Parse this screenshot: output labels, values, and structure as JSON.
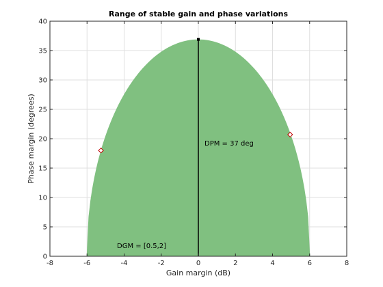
{
  "chart_data": {
    "type": "area",
    "title": "Range of stable gain and phase variations",
    "xlabel": "Gain margin (dB)",
    "ylabel": "Phase margin (degrees)",
    "xlim": [
      -8,
      8
    ],
    "ylim": [
      0,
      40
    ],
    "xticks": [
      "-8",
      "-6",
      "-4",
      "-2",
      "0",
      "2",
      "4",
      "6",
      "8"
    ],
    "yticks": [
      "0",
      "5",
      "10",
      "15",
      "20",
      "25",
      "30",
      "35",
      "40"
    ],
    "grid": true,
    "region": {
      "gain_min_db": -6.02,
      "gain_max_db": 6.02,
      "peak_phase_deg": 36.9,
      "fill_color": "#80c080"
    },
    "disk_margin_line": {
      "x": 0,
      "y_from": 0,
      "y_to": 36.9
    },
    "markers": [
      {
        "x": -5.25,
        "y": 18.0
      },
      {
        "x": 4.95,
        "y": 20.7
      }
    ],
    "annotations": {
      "dpm": "DPM = 37 deg",
      "dgm": "DGM = [0.5,2]"
    },
    "colors": {
      "region": "#80c080",
      "marker_edge": "#c00000",
      "grid": "#dfdfdf",
      "axis": "#262626"
    }
  }
}
